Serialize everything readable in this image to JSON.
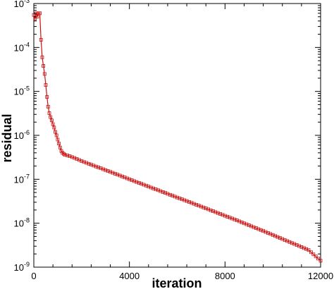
{
  "chart_data": {
    "type": "line",
    "xlabel": "iteration",
    "ylabel": "residual",
    "x_scale": "linear",
    "y_scale": "log",
    "xlim": [
      0,
      12000
    ],
    "ylim": [
      1e-09,
      0.001
    ],
    "x_ticks": [
      {
        "value": 0,
        "label": "0"
      },
      {
        "value": 4000,
        "label": "4000"
      },
      {
        "value": 8000,
        "label": "8000"
      },
      {
        "value": 12000,
        "label": "12000"
      }
    ],
    "y_ticks": [
      {
        "value": 1e-09,
        "base": "10",
        "exp": "-9"
      },
      {
        "value": 1e-08,
        "base": "10",
        "exp": "-8"
      },
      {
        "value": 1e-07,
        "base": "10",
        "exp": "-7"
      },
      {
        "value": 1e-06,
        "base": "10",
        "exp": "-6"
      },
      {
        "value": 1e-05,
        "base": "10",
        "exp": "-5"
      },
      {
        "value": 0.0001,
        "base": "10",
        "exp": "-4"
      },
      {
        "value": 0.001,
        "base": "10",
        "exp": "-3"
      }
    ],
    "grid": false,
    "line_color": "#cc1111",
    "marker": "square",
    "series": [
      {
        "x": [
          0,
          50,
          100,
          150,
          200,
          250,
          300,
          350,
          400,
          450,
          500,
          550,
          600,
          650,
          700,
          750,
          800,
          850,
          900,
          950,
          1000,
          1050,
          1100,
          1150,
          1200,
          1250,
          1300,
          1350,
          1400,
          1500,
          1600,
          1700,
          1800,
          1900,
          2000,
          2500,
          3000,
          3500,
          4000,
          4500,
          5000,
          5500,
          6000,
          6500,
          7000,
          7500,
          8000,
          8500,
          9000,
          9500,
          10000,
          10500,
          11000,
          11500,
          12000
        ],
        "y": [
          0.00055,
          0.00045,
          0.0006,
          0.0005,
          0.0006,
          0.0006,
          0.00015,
          6e-05,
          3.8e-05,
          2.5e-05,
          1.4e-05,
          7.5e-06,
          4.5e-06,
          3.2e-06,
          2.6e-06,
          2.2e-06,
          1.8e-06,
          1.5e-06,
          1.2e-06,
          1e-06,
          8e-07,
          6.5e-07,
          5.3e-07,
          4.4e-07,
          4e-07,
          3.8e-07,
          3.6e-07,
          3.55e-07,
          3.5e-07,
          3.35e-07,
          3.2e-07,
          3.05e-07,
          2.9e-07,
          2.75e-07,
          2.6e-07,
          2.05e-07,
          1.62e-07,
          1.28e-07,
          1e-07,
          7.9e-08,
          6.2e-08,
          4.9e-08,
          3.85e-08,
          3.05e-08,
          2.4e-08,
          1.88e-08,
          1.48e-08,
          1.16e-08,
          9e-09,
          7e-09,
          5.4e-09,
          4.15e-09,
          3.2e-09,
          2.45e-09,
          1.4e-09
        ]
      }
    ]
  }
}
